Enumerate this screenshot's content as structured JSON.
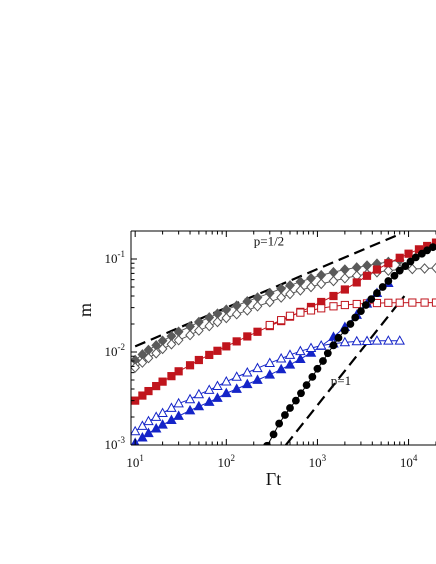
{
  "chart_data": {
    "type": "scatter",
    "title": "",
    "xlabel": "Γt",
    "ylabel": "m",
    "x_scale": "log",
    "y_scale": "log",
    "xlim": [
      9,
      20000
    ],
    "ylim": [
      0.001,
      0.2
    ],
    "x_ticks": [
      10,
      100,
      1000,
      10000
    ],
    "x_tick_labels": [
      {
        "base": "10",
        "exp": "1"
      },
      {
        "base": "10",
        "exp": "2"
      },
      {
        "base": "10",
        "exp": "3"
      },
      {
        "base": "10",
        "exp": "4"
      }
    ],
    "y_ticks": [
      0.001,
      0.01,
      0.1
    ],
    "y_tick_labels": [
      {
        "base": "10",
        "exp": "-3"
      },
      {
        "base": "10",
        "exp": "-2"
      },
      {
        "base": "10",
        "exp": "-1"
      }
    ],
    "grid": false,
    "annotations": [
      {
        "text": "p=1/2",
        "x": 200,
        "y": 0.14
      },
      {
        "text": "p=1",
        "x": 1400,
        "y": 0.0044
      }
    ],
    "reference_lines": [
      {
        "label": "p=1/2",
        "color": "#000000",
        "x": [
          10,
          8000
        ],
        "y": [
          0.0115,
          0.185
        ]
      },
      {
        "label": "p=1",
        "color": "#000000",
        "x": [
          450,
          9000
        ],
        "y": [
          0.001,
          0.04
        ]
      }
    ],
    "series": [
      {
        "marker": "diamond",
        "filled": true,
        "color": "#5a5a5a",
        "x": [
          10,
          12,
          14,
          17,
          20,
          25,
          30,
          40,
          50,
          65,
          80,
          100,
          130,
          170,
          220,
          300,
          400,
          500,
          650,
          850,
          1100,
          1500,
          2000,
          2700,
          3500,
          4500,
          6000,
          8000
        ],
        "y": [
          0.0082,
          0.0094,
          0.0105,
          0.0118,
          0.0132,
          0.0148,
          0.0165,
          0.0188,
          0.021,
          0.0235,
          0.0258,
          0.0285,
          0.0315,
          0.035,
          0.0385,
          0.043,
          0.048,
          0.052,
          0.057,
          0.062,
          0.067,
          0.072,
          0.077,
          0.081,
          0.085,
          0.089,
          0.093,
          0.097
        ]
      },
      {
        "marker": "diamond",
        "filled": false,
        "color": "#555555",
        "x": [
          10,
          12,
          14,
          17,
          20,
          25,
          30,
          40,
          50,
          65,
          80,
          100,
          130,
          170,
          220,
          300,
          400,
          500,
          650,
          850,
          1100,
          1500,
          2000,
          2700,
          3500,
          4500,
          6000,
          8000,
          11000,
          15000,
          20000
        ],
        "y": [
          0.0068,
          0.0077,
          0.0086,
          0.0097,
          0.0108,
          0.0121,
          0.0134,
          0.0152,
          0.017,
          0.019,
          0.021,
          0.0232,
          0.0255,
          0.028,
          0.031,
          0.0345,
          0.0385,
          0.042,
          0.046,
          0.05,
          0.054,
          0.058,
          0.062,
          0.066,
          0.069,
          0.072,
          0.075,
          0.077,
          0.078,
          0.079,
          0.08
        ]
      },
      {
        "marker": "square",
        "filled": true,
        "color": "#c0151d",
        "x": [
          10,
          12,
          14,
          17,
          20,
          25,
          30,
          40,
          50,
          65,
          80,
          100,
          130,
          170,
          220,
          300,
          400,
          500,
          650,
          850,
          1100,
          1500,
          2000,
          2700,
          3500,
          4500,
          6000,
          8000,
          10000,
          13000,
          16000,
          20000
        ],
        "y": [
          0.003,
          0.0034,
          0.0038,
          0.0043,
          0.0048,
          0.0055,
          0.0062,
          0.0072,
          0.0082,
          0.0093,
          0.0103,
          0.0115,
          0.013,
          0.0147,
          0.0165,
          0.019,
          0.0215,
          0.024,
          0.027,
          0.0305,
          0.0345,
          0.04,
          0.047,
          0.056,
          0.066,
          0.077,
          0.09,
          0.103,
          0.114,
          0.127,
          0.138,
          0.15
        ]
      },
      {
        "marker": "square",
        "filled": false,
        "color": "#c0151d",
        "x": [
          300,
          400,
          500,
          650,
          850,
          1100,
          1500,
          2000,
          2700,
          3500,
          4500,
          6000,
          8000,
          11000,
          15000,
          20000
        ],
        "y": [
          0.0195,
          0.022,
          0.0245,
          0.0265,
          0.028,
          0.0295,
          0.031,
          0.032,
          0.0328,
          0.0333,
          0.0336,
          0.0338,
          0.0339,
          0.034,
          0.034,
          0.034
        ]
      },
      {
        "marker": "triangle",
        "filled": true,
        "color": "#1424c8",
        "x": [
          10,
          12,
          14,
          17,
          20,
          25,
          30,
          40,
          50,
          65,
          80,
          100,
          130,
          170,
          220,
          300,
          400,
          500,
          650,
          850,
          1100,
          1500,
          2000,
          2700,
          3500,
          4500,
          6000
        ],
        "y": [
          0.00105,
          0.0012,
          0.00134,
          0.0015,
          0.00165,
          0.00185,
          0.00205,
          0.00235,
          0.0026,
          0.0029,
          0.0032,
          0.0036,
          0.004,
          0.0045,
          0.005,
          0.0057,
          0.0065,
          0.0073,
          0.0084,
          0.0098,
          0.0116,
          0.0145,
          0.0185,
          0.025,
          0.033,
          0.043,
          0.055
        ]
      },
      {
        "marker": "triangle",
        "filled": false,
        "color": "#1424c8",
        "x": [
          10,
          12,
          14,
          17,
          20,
          25,
          30,
          40,
          50,
          65,
          80,
          100,
          130,
          170,
          220,
          300,
          400,
          500,
          650,
          850,
          1100,
          1500,
          2000,
          2700,
          3500,
          4500,
          6000,
          8000
        ],
        "y": [
          0.0014,
          0.0016,
          0.0018,
          0.002,
          0.0022,
          0.0025,
          0.0028,
          0.0031,
          0.0035,
          0.0039,
          0.0043,
          0.0048,
          0.0054,
          0.006,
          0.0067,
          0.0076,
          0.0085,
          0.0093,
          0.0102,
          0.011,
          0.0117,
          0.0123,
          0.0127,
          0.013,
          0.0131,
          0.0132,
          0.0132,
          0.0132
        ]
      },
      {
        "marker": "circle",
        "filled": true,
        "color": "#000000",
        "x": [
          280,
          330,
          380,
          440,
          500,
          580,
          660,
          760,
          880,
          1000,
          1150,
          1300,
          1500,
          1700,
          2000,
          2300,
          2600,
          3000,
          3400,
          3900,
          4500,
          5200,
          6000,
          7000,
          8000,
          9200,
          10500,
          12000,
          14000,
          16000,
          18500
        ],
        "y": [
          0.00098,
          0.0013,
          0.0017,
          0.0021,
          0.0025,
          0.003,
          0.0036,
          0.0044,
          0.0054,
          0.0066,
          0.008,
          0.0097,
          0.0118,
          0.0142,
          0.017,
          0.02,
          0.0235,
          0.0275,
          0.032,
          0.037,
          0.043,
          0.05,
          0.058,
          0.066,
          0.075,
          0.084,
          0.094,
          0.104,
          0.114,
          0.124,
          0.134
        ]
      }
    ]
  }
}
